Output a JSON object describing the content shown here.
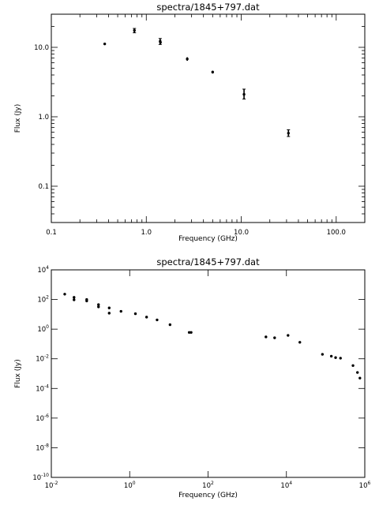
{
  "chart_data": [
    {
      "type": "scatter",
      "title": "spectra/1845+797.dat",
      "xlabel": "Frequency (GHz)",
      "ylabel": "Flux (Jy)",
      "xscale": "log",
      "yscale": "log",
      "xlim": [
        0.1,
        200
      ],
      "ylim": [
        0.03,
        30
      ],
      "xticks": [
        0.1,
        1,
        10,
        100
      ],
      "xtick_labels": [
        "0.1",
        "1.0",
        "10.0",
        "100.0"
      ],
      "yticks": [
        0.1,
        1,
        10
      ],
      "ytick_labels": [
        "0.1",
        "1.0",
        "10.0"
      ],
      "grid": false,
      "points": [
        {
          "x": 0.365,
          "y": 11.2,
          "ylo": 10.9,
          "yhi": 11.5
        },
        {
          "x": 0.75,
          "y": 17.5,
          "ylo": 16.2,
          "yhi": 18.7
        },
        {
          "x": 1.4,
          "y": 12.2,
          "ylo": 11.0,
          "yhi": 13.4
        },
        {
          "x": 1.41,
          "y": 11.8,
          "ylo": 11.2,
          "yhi": 12.4
        },
        {
          "x": 2.7,
          "y": 6.8,
          "ylo": 6.4,
          "yhi": 7.2
        },
        {
          "x": 5.0,
          "y": 4.4,
          "ylo": 4.2,
          "yhi": 4.6
        },
        {
          "x": 10.7,
          "y": 2.1,
          "ylo": 1.8,
          "yhi": 2.5
        },
        {
          "x": 31.4,
          "y": 0.58,
          "ylo": 0.52,
          "yhi": 0.65
        }
      ]
    },
    {
      "type": "scatter",
      "title": "spectra/1845+797.dat",
      "xlabel": "Frequency (GHz)",
      "ylabel": "Flux (Jy)",
      "xscale": "log",
      "yscale": "log",
      "xlim": [
        0.01,
        1000000
      ],
      "ylim": [
        1e-10,
        10000
      ],
      "xticks": [
        0.01,
        1,
        100,
        10000,
        1000000
      ],
      "xtick_labels": [
        {
          "base": "10",
          "exp": "-2"
        },
        {
          "base": "10",
          "exp": "0"
        },
        {
          "base": "10",
          "exp": "2"
        },
        {
          "base": "10",
          "exp": "4"
        },
        {
          "base": "10",
          "exp": "6"
        }
      ],
      "yticks": [
        1e-10,
        1e-08,
        1e-06,
        0.0001,
        0.01,
        1,
        100,
        10000
      ],
      "ytick_labels": [
        {
          "base": "10",
          "exp": "-10"
        },
        {
          "base": "10",
          "exp": "-8"
        },
        {
          "base": "10",
          "exp": "-6"
        },
        {
          "base": "10",
          "exp": "-4"
        },
        {
          "base": "10",
          "exp": "-2"
        },
        {
          "base": "10",
          "exp": "0"
        },
        {
          "base": "10",
          "exp": "2"
        },
        {
          "base": "10",
          "exp": "4"
        }
      ],
      "grid": false,
      "points": [
        {
          "x": 0.022,
          "y": 230
        },
        {
          "x": 0.038,
          "y": 140
        },
        {
          "x": 0.038,
          "y": 95
        },
        {
          "x": 0.08,
          "y": 100
        },
        {
          "x": 0.08,
          "y": 80
        },
        {
          "x": 0.16,
          "y": 45
        },
        {
          "x": 0.16,
          "y": 32
        },
        {
          "x": 0.3,
          "y": 27
        },
        {
          "x": 0.3,
          "y": 12
        },
        {
          "x": 0.6,
          "y": 16
        },
        {
          "x": 1.4,
          "y": 11
        },
        {
          "x": 2.7,
          "y": 6.5
        },
        {
          "x": 5.0,
          "y": 4.2
        },
        {
          "x": 10.7,
          "y": 2.0
        },
        {
          "x": 33,
          "y": 0.6
        },
        {
          "x": 37,
          "y": 0.6
        },
        {
          "x": 3000,
          "y": 0.3
        },
        {
          "x": 5000,
          "y": 0.26
        },
        {
          "x": 11000,
          "y": 0.38
        },
        {
          "x": 22000,
          "y": 0.13
        },
        {
          "x": 83000,
          "y": 0.02
        },
        {
          "x": 140000,
          "y": 0.015
        },
        {
          "x": 180000,
          "y": 0.012
        },
        {
          "x": 240000,
          "y": 0.011
        },
        {
          "x": 500000,
          "y": 0.0035
        },
        {
          "x": 650000,
          "y": 0.0012
        },
        {
          "x": 750000,
          "y": 0.0005
        }
      ]
    }
  ]
}
